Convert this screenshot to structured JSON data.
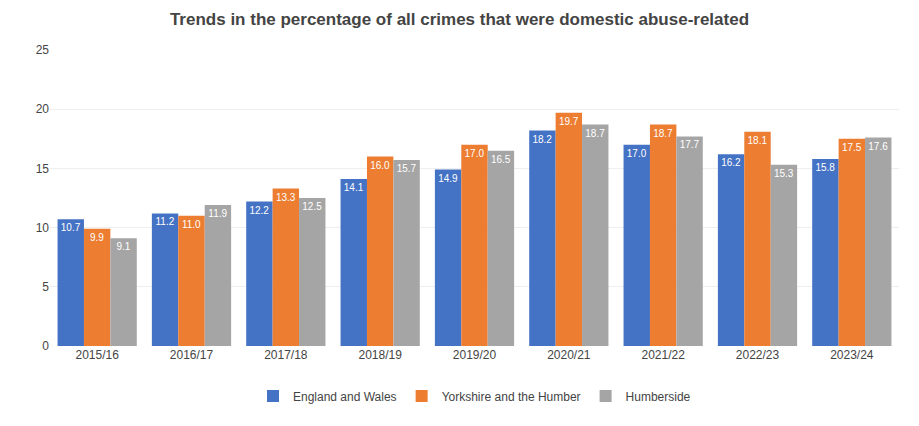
{
  "chart_data": {
    "type": "bar",
    "title": "Trends in the percentage of all crimes that were domestic abuse-related",
    "categories": [
      "2015/16",
      "2016/17",
      "2017/18",
      "2018/19",
      "2019/20",
      "2020/21",
      "2021/22",
      "2022/23",
      "2023/24"
    ],
    "series": [
      {
        "name": "England and Wales",
        "color": "#4472C4",
        "values": [
          10.7,
          11.2,
          12.2,
          14.1,
          14.9,
          18.2,
          17.0,
          16.2,
          15.8
        ],
        "value_labels": [
          "10.7",
          "11.2",
          "12.2",
          "14.1",
          "14.9",
          "18.2",
          "17.0",
          "16.2",
          "15.8"
        ]
      },
      {
        "name": "Yorkshire and the Humber",
        "color": "#ED7D31",
        "values": [
          9.9,
          11.0,
          13.3,
          16.0,
          17.0,
          19.7,
          18.7,
          18.1,
          17.5
        ],
        "value_labels": [
          "9.9",
          "11.0",
          "13.3",
          "16.0",
          "17.0",
          "19.7",
          "18.7",
          "18.1",
          "17.5"
        ]
      },
      {
        "name": "Humberside",
        "color": "#A5A5A5",
        "values": [
          9.1,
          11.9,
          12.5,
          15.7,
          16.5,
          18.7,
          17.7,
          15.3,
          17.6
        ],
        "value_labels": [
          "9.1",
          "11.9",
          "12.5",
          "15.7",
          "16.5",
          "18.7",
          "17.7",
          "15.3",
          "17.6"
        ]
      }
    ],
    "ylim": [
      0,
      25
    ],
    "yticks": [
      0,
      5,
      10,
      15,
      20,
      25
    ],
    "grid": true,
    "data_labels": true,
    "legend": "bottom"
  }
}
